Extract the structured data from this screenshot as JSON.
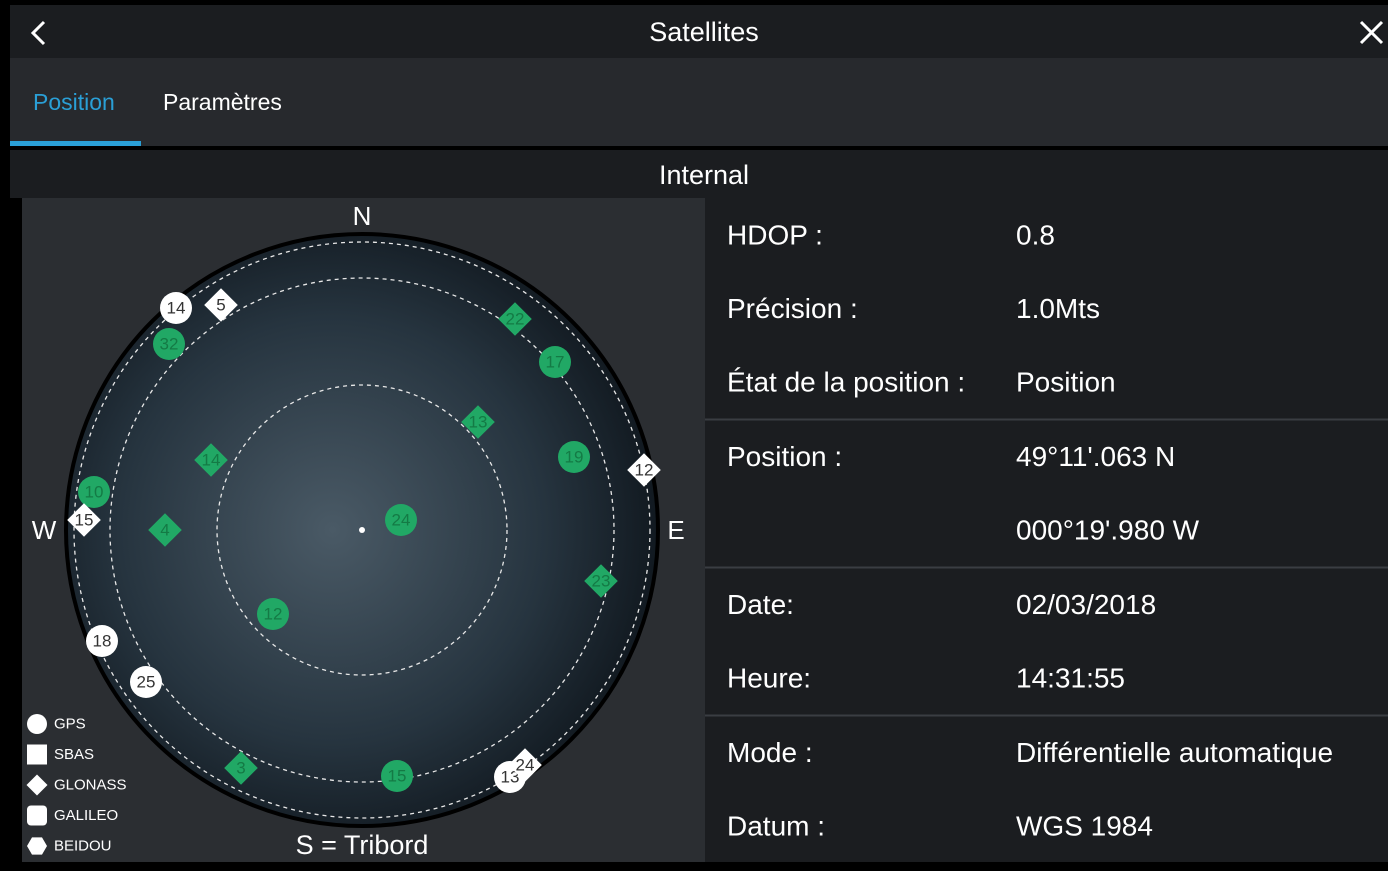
{
  "header": {
    "title": "Satellites"
  },
  "tabs": [
    "Position",
    "Paramètres"
  ],
  "active_tab": 0,
  "section": "Internal",
  "sky": {
    "north": "N",
    "east": "E",
    "west": "W",
    "south": "S = Tribord",
    "satellites": [
      {
        "label": "14",
        "shape": "circle",
        "color": "#ffffff"
      },
      {
        "label": "5",
        "shape": "diamond",
        "color": "#ffffff"
      },
      {
        "label": "32",
        "shape": "circle",
        "color": "#21a865"
      },
      {
        "label": "22",
        "shape": "diamond",
        "color": "#21a865"
      },
      {
        "label": "17",
        "shape": "circle",
        "color": "#21a865"
      },
      {
        "label": "13",
        "shape": "diamond",
        "color": "#21a865"
      },
      {
        "label": "14",
        "shape": "diamond",
        "color": "#21a865"
      },
      {
        "label": "19",
        "shape": "circle",
        "color": "#21a865"
      },
      {
        "label": "12",
        "shape": "diamond",
        "color": "#ffffff"
      },
      {
        "label": "10",
        "shape": "circle",
        "color": "#21a865"
      },
      {
        "label": "15",
        "shape": "diamond",
        "color": "#ffffff"
      },
      {
        "label": "4",
        "shape": "diamond",
        "color": "#21a865"
      },
      {
        "label": "24",
        "shape": "circle",
        "color": "#21a865"
      },
      {
        "label": "23",
        "shape": "diamond",
        "color": "#21a865"
      },
      {
        "label": "12",
        "shape": "circle",
        "color": "#21a865"
      },
      {
        "label": "18",
        "shape": "circle",
        "color": "#ffffff"
      },
      {
        "label": "25",
        "shape": "circle",
        "color": "#ffffff"
      },
      {
        "label": "3",
        "shape": "diamond",
        "color": "#21a865"
      },
      {
        "label": "15",
        "shape": "circle",
        "color": "#21a865"
      },
      {
        "label": "13",
        "shape": "circle",
        "color": "#ffffff"
      },
      {
        "label": "24",
        "shape": "diamond",
        "color": "#ffffff"
      }
    ],
    "legend": [
      {
        "label": "GPS",
        "shape": "circle"
      },
      {
        "label": "SBAS",
        "shape": "square"
      },
      {
        "label": "GLONASS",
        "shape": "diamond"
      },
      {
        "label": "GALILEO",
        "shape": "rounded"
      },
      {
        "label": "BEIDOU",
        "shape": "hexagon"
      }
    ]
  },
  "info": {
    "groups": [
      [
        {
          "label": "HDOP :",
          "value": "0.8"
        },
        {
          "label": "Précision :",
          "value": "1.0Mts"
        },
        {
          "label": "État de la position :",
          "value": "Position"
        }
      ],
      [
        {
          "label": "Position :",
          "value": "49°11'.063 N"
        },
        {
          "value": "000°19'.980 W"
        }
      ],
      [
        {
          "label": "Date:",
          "value": "02/03/2018"
        },
        {
          "label": "Heure:",
          "value": "14:31:55"
        }
      ],
      [
        {
          "label": "Mode :",
          "value": "Différentielle automatique"
        },
        {
          "label": "Datum :",
          "value": "WGS 1984"
        }
      ]
    ]
  }
}
